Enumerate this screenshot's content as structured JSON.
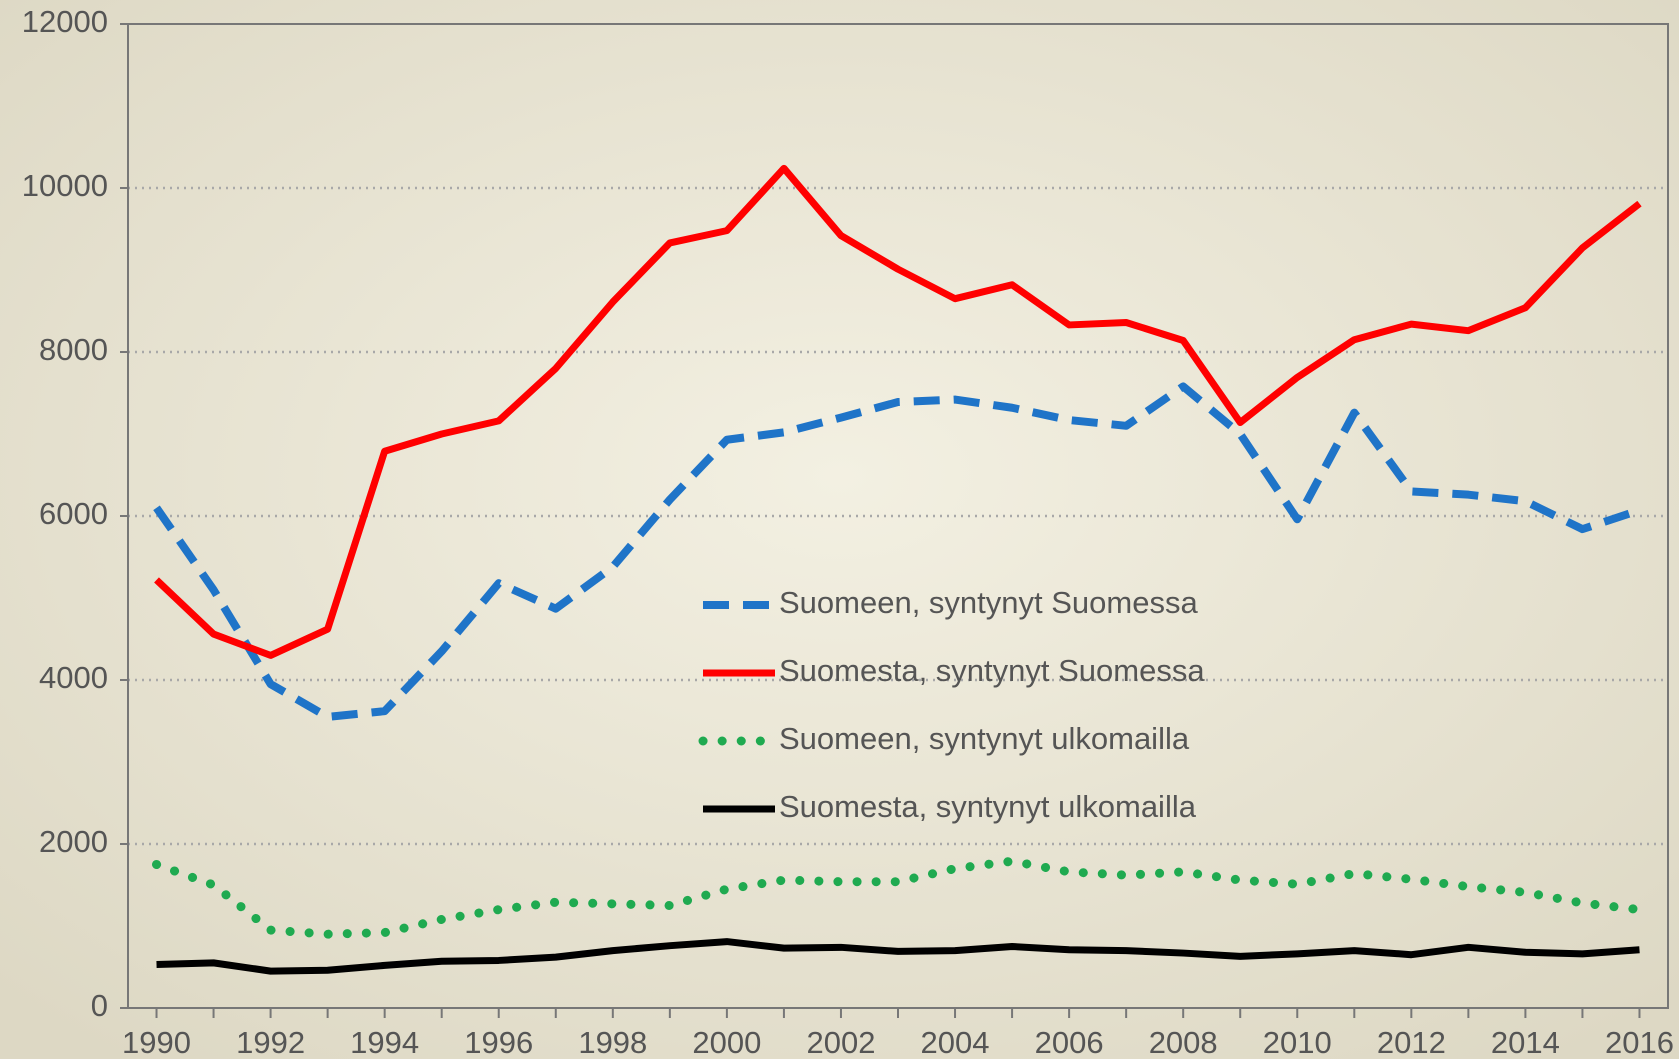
{
  "chart_data": {
    "type": "line",
    "x": [
      1990,
      1991,
      1992,
      1993,
      1994,
      1995,
      1996,
      1997,
      1998,
      1999,
      2000,
      2001,
      2002,
      2003,
      2004,
      2005,
      2006,
      2007,
      2008,
      2009,
      2010,
      2011,
      2012,
      2013,
      2014,
      2015,
      2016
    ],
    "xlim": [
      1989.5,
      2016.5
    ],
    "xticks": [
      1990,
      1992,
      1994,
      1996,
      1998,
      2000,
      2002,
      2004,
      2006,
      2008,
      2010,
      2012,
      2014,
      2016
    ],
    "ylim": [
      0,
      12000
    ],
    "yticks": [
      0,
      2000,
      4000,
      6000,
      8000,
      10000,
      12000
    ],
    "grid": true,
    "legend": "center",
    "series": [
      {
        "name": "Suomeen, syntynyt Suomessa",
        "color": "#1f74c8",
        "style": "dashed",
        "values": [
          6100,
          5100,
          3950,
          3550,
          3620,
          4350,
          5180,
          4870,
          5380,
          6200,
          6930,
          7020,
          7200,
          7390,
          7420,
          7320,
          7170,
          7100,
          7580,
          7000,
          5960,
          7260,
          6300,
          6260,
          6180,
          5840,
          6070
        ]
      },
      {
        "name": "Suomesta, syntynyt Suomessa",
        "color": "#ff0000",
        "style": "solid",
        "values": [
          5220,
          4560,
          4300,
          4620,
          6790,
          7000,
          7160,
          7800,
          8610,
          9330,
          9480,
          10240,
          9420,
          9010,
          8650,
          8820,
          8330,
          8360,
          8140,
          7140,
          7690,
          8150,
          8340,
          8260,
          8540,
          9270,
          9810
        ]
      },
      {
        "name": "Suomeen, syntynyt ulkomailla",
        "color": "#1faa50",
        "style": "dotted",
        "values": [
          1750,
          1500,
          950,
          900,
          920,
          1080,
          1200,
          1290,
          1270,
          1250,
          1450,
          1560,
          1540,
          1540,
          1700,
          1790,
          1660,
          1620,
          1660,
          1560,
          1510,
          1640,
          1570,
          1480,
          1410,
          1280,
          1200
        ]
      },
      {
        "name": "Suomesta, syntynyt ulkomailla",
        "color": "#000000",
        "style": "solid",
        "values": [
          530,
          550,
          450,
          460,
          520,
          570,
          580,
          620,
          700,
          760,
          810,
          730,
          740,
          690,
          700,
          750,
          710,
          700,
          670,
          630,
          660,
          700,
          650,
          740,
          680,
          660,
          710
        ]
      }
    ]
  }
}
